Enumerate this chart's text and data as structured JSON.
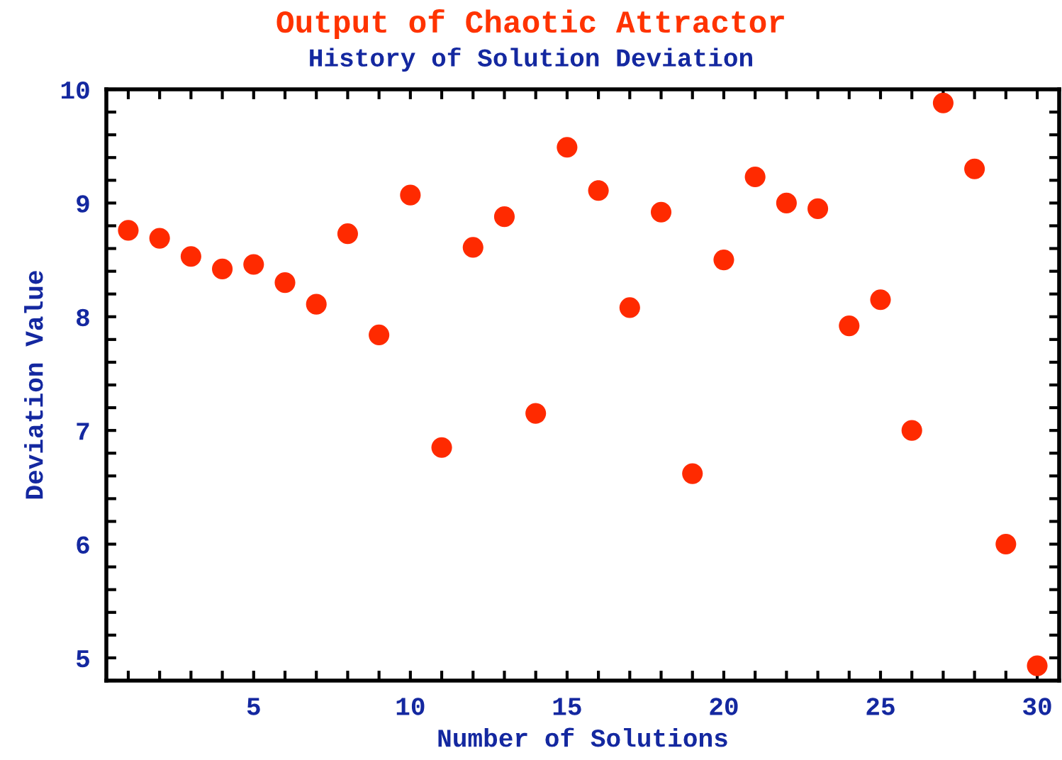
{
  "chart_data": {
    "type": "scatter",
    "title": "Output of Chaotic Attractor",
    "subtitle": "History of Solution Deviation",
    "xlabel": "Number of Solutions",
    "ylabel": "Deviation Value",
    "x": [
      1,
      2,
      3,
      4,
      5,
      6,
      7,
      8,
      9,
      10,
      11,
      12,
      13,
      14,
      15,
      16,
      17,
      18,
      19,
      20,
      21,
      22,
      23,
      24,
      25,
      26,
      27,
      28,
      29,
      30
    ],
    "series": [
      {
        "color": "#ff2a00",
        "values": [
          8.76,
          8.69,
          8.53,
          8.42,
          8.46,
          8.3,
          8.11,
          8.73,
          7.84,
          9.07,
          6.85,
          8.61,
          8.88,
          7.15,
          9.49,
          9.11,
          8.08,
          8.92,
          6.62,
          8.5,
          9.23,
          9.0,
          8.95,
          7.92,
          8.15,
          7.0,
          9.88,
          9.3,
          6.0,
          4.93
        ]
      }
    ],
    "xlim": [
      0.3,
      30.7
    ],
    "ylim": [
      4.8,
      10
    ],
    "xticks": [
      {
        "value": 1,
        "label": null
      },
      {
        "value": 2,
        "label": null
      },
      {
        "value": 3,
        "label": null
      },
      {
        "value": 4,
        "label": null
      },
      5,
      {
        "value": 6,
        "label": null
      },
      {
        "value": 7,
        "label": null
      },
      {
        "value": 8,
        "label": null
      },
      {
        "value": 9,
        "label": null
      },
      10,
      {
        "value": 11,
        "label": null
      },
      {
        "value": 12,
        "label": null
      },
      {
        "value": 13,
        "label": null
      },
      {
        "value": 14,
        "label": null
      },
      15,
      {
        "value": 16,
        "label": null
      },
      {
        "value": 17,
        "label": null
      },
      {
        "value": 18,
        "label": null
      },
      {
        "value": 19,
        "label": null
      },
      20,
      {
        "value": 21,
        "label": null
      },
      {
        "value": 22,
        "label": null
      },
      {
        "value": 23,
        "label": null
      },
      {
        "value": 24,
        "label": null
      },
      25,
      {
        "value": 26,
        "label": null
      },
      {
        "value": 27,
        "label": null
      },
      {
        "value": 28,
        "label": null
      },
      {
        "value": 29,
        "label": null
      },
      30
    ],
    "yticks": [
      {
        "value": 4.8,
        "label": null
      },
      5,
      {
        "value": 5.2,
        "label": null
      },
      {
        "value": 5.4,
        "label": null
      },
      {
        "value": 5.6,
        "label": null
      },
      {
        "value": 5.8,
        "label": null
      },
      6,
      {
        "value": 6.2,
        "label": null
      },
      {
        "value": 6.4,
        "label": null
      },
      {
        "value": 6.6,
        "label": null
      },
      {
        "value": 6.8,
        "label": null
      },
      7,
      {
        "value": 7.2,
        "label": null
      },
      {
        "value": 7.4,
        "label": null
      },
      {
        "value": 7.6,
        "label": null
      },
      {
        "value": 7.8,
        "label": null
      },
      8,
      {
        "value": 8.2,
        "label": null
      },
      {
        "value": 8.4,
        "label": null
      },
      {
        "value": 8.6,
        "label": null
      },
      {
        "value": 8.8,
        "label": null
      },
      9,
      {
        "value": 9.2,
        "label": null
      },
      {
        "value": 9.4,
        "label": null
      },
      {
        "value": 9.6,
        "label": null
      },
      {
        "value": 9.8,
        "label": null
      },
      10
    ],
    "marker": "circle",
    "grid": false
  }
}
